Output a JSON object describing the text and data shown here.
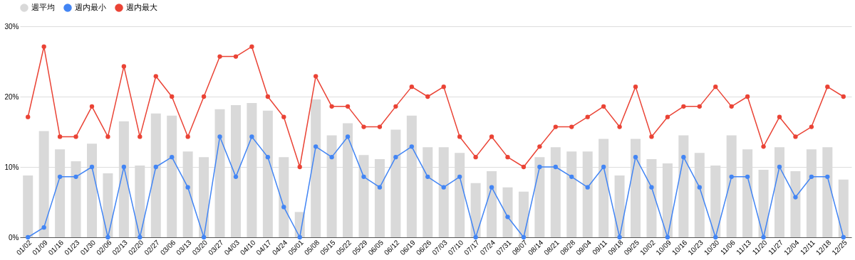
{
  "chart_data": {
    "type": "bar",
    "categories": [
      "01/02",
      "01/09",
      "01/16",
      "01/23",
      "01/30",
      "02/06",
      "02/13",
      "02/20",
      "02/27",
      "03/06",
      "03/13",
      "03/20",
      "03/27",
      "04/03",
      "04/10",
      "04/17",
      "04/24",
      "05/01",
      "05/08",
      "05/15",
      "05/22",
      "05/29",
      "06/05",
      "06/12",
      "06/19",
      "06/26",
      "07/03",
      "07/10",
      "07/17",
      "07/24",
      "07/31",
      "08/07",
      "08/14",
      "08/21",
      "08/28",
      "09/04",
      "09/11",
      "09/18",
      "09/25",
      "10/02",
      "10/09",
      "10/16",
      "10/23",
      "10/30",
      "11/06",
      "11/13",
      "11/20",
      "11/27",
      "12/04",
      "12/11",
      "12/18",
      "12/25"
    ],
    "series": [
      {
        "name": "週平均",
        "color": "#d9d9d9",
        "values": [
          8.8,
          15.1,
          12.5,
          10.8,
          13.3,
          9.1,
          16.5,
          10.2,
          17.6,
          17.3,
          12.2,
          11.4,
          18.2,
          18.8,
          19.1,
          18.0,
          11.4,
          3.6,
          19.6,
          14.5,
          16.2,
          11.7,
          11.1,
          15.3,
          17.3,
          12.8,
          12.8,
          12.0,
          7.7,
          9.4,
          7.1,
          6.5,
          11.4,
          12.8,
          12.2,
          12.2,
          14.0,
          8.8,
          14.0,
          11.1,
          10.5,
          14.5,
          12.0,
          10.2,
          14.5,
          12.5,
          9.6,
          12.8,
          9.4,
          12.5,
          12.8,
          8.2
        ]
      },
      {
        "name": "週内最小",
        "type": "line",
        "color": "#4285f4",
        "values": [
          0,
          1.4,
          8.6,
          8.6,
          10,
          0,
          10,
          0,
          10,
          11.4,
          7.1,
          0,
          14.3,
          8.6,
          14.3,
          11.4,
          4.3,
          0,
          12.9,
          11.4,
          14.3,
          8.6,
          7.1,
          11.4,
          12.9,
          8.6,
          7.1,
          8.6,
          0,
          7.1,
          2.9,
          0,
          10,
          10,
          8.6,
          7.1,
          10,
          0,
          11.4,
          7.1,
          0,
          11.4,
          7.1,
          0,
          8.6,
          8.6,
          0,
          10,
          5.7,
          8.6,
          8.6,
          0
        ]
      },
      {
        "name": "週内最大",
        "type": "line",
        "color": "#ea4335",
        "values": [
          17.1,
          27.1,
          14.3,
          14.3,
          18.6,
          14.3,
          24.3,
          14.3,
          22.9,
          20,
          14.3,
          20,
          25.7,
          25.7,
          27.1,
          20,
          17.1,
          10,
          22.9,
          18.6,
          18.6,
          15.7,
          15.7,
          18.6,
          21.4,
          20,
          21.4,
          14.3,
          11.4,
          14.3,
          11.4,
          10,
          12.9,
          15.7,
          15.7,
          17.1,
          18.6,
          15.7,
          21.4,
          14.3,
          17.1,
          18.6,
          18.6,
          21.4,
          18.6,
          20,
          12.9,
          17.1,
          14.3,
          15.7,
          21.4,
          20
        ]
      }
    ],
    "ylim": [
      0,
      30
    ],
    "yticks": [
      {
        "value": 0,
        "label": "0%"
      },
      {
        "value": 10,
        "label": "10%"
      },
      {
        "value": 20,
        "label": "20%"
      },
      {
        "value": 30,
        "label": "30%"
      }
    ],
    "grid": "y",
    "legend": "top",
    "marker": "circle",
    "line_style": "solid"
  }
}
